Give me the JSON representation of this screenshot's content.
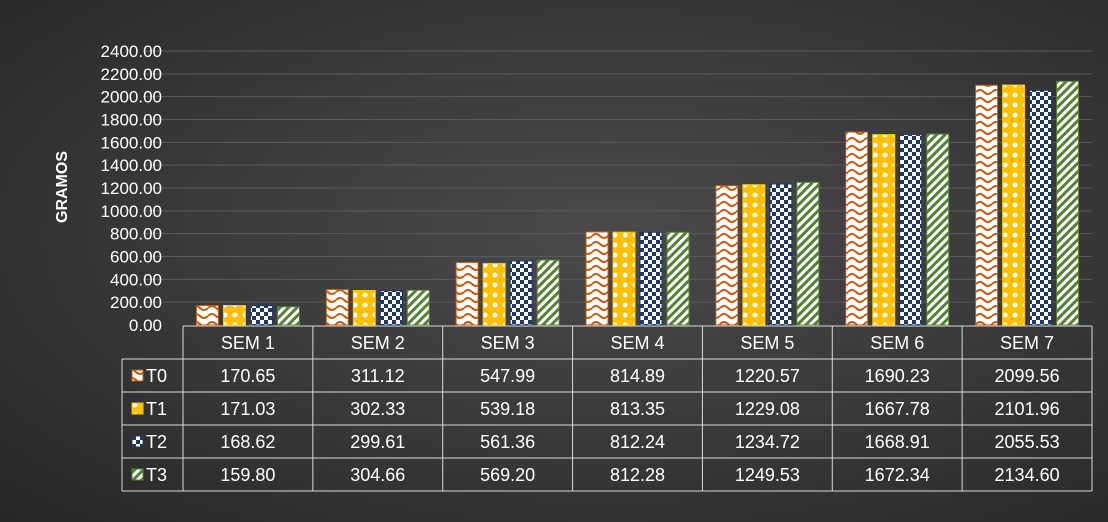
{
  "chart_data": {
    "type": "bar",
    "title": "",
    "xlabel": "",
    "ylabel": "GRAMOS",
    "ylim": [
      0,
      2400
    ],
    "ytick_step": 200,
    "ytick_labels": [
      "0.00",
      "200.00",
      "400.00",
      "600.00",
      "800.00",
      "1000.00",
      "1200.00",
      "1400.00",
      "1600.00",
      "1800.00",
      "2000.00",
      "2200.00",
      "2400.00"
    ],
    "grid": true,
    "legend": "data-table",
    "categories": [
      "SEM 1",
      "SEM 2",
      "SEM 3",
      "SEM 4",
      "SEM 5",
      "SEM 6",
      "SEM 7"
    ],
    "series": [
      {
        "name": "T0",
        "values": [
          170.65,
          311.12,
          547.99,
          814.89,
          1220.57,
          1690.23,
          2099.56
        ],
        "labels": [
          "170.65",
          "311.12",
          "547.99",
          "814.89",
          "1220.57",
          "1690.23",
          "2099.56"
        ],
        "color": "#c55a11",
        "pattern": "wave"
      },
      {
        "name": "T1",
        "values": [
          171.03,
          302.33,
          539.18,
          813.35,
          1229.08,
          1667.78,
          2101.96
        ],
        "labels": [
          "171.03",
          "302.33",
          "539.18",
          "813.35",
          "1229.08",
          "1667.78",
          "2101.96"
        ],
        "color": "#ffc000",
        "pattern": "dots"
      },
      {
        "name": "T2",
        "values": [
          168.62,
          299.61,
          561.36,
          812.24,
          1234.72,
          1668.91,
          2055.53
        ],
        "labels": [
          "168.62",
          "299.61",
          "561.36",
          "812.24",
          "1234.72",
          "1668.91",
          "2055.53"
        ],
        "color": "#203864",
        "pattern": "checker"
      },
      {
        "name": "T3",
        "values": [
          159.8,
          304.66,
          569.2,
          812.28,
          1249.53,
          1672.34,
          2134.6
        ],
        "labels": [
          "159.80",
          "304.66",
          "569.20",
          "812.28",
          "1249.53",
          "1672.34",
          "2134.60"
        ],
        "color": "#548235",
        "pattern": "diagonal"
      }
    ]
  }
}
